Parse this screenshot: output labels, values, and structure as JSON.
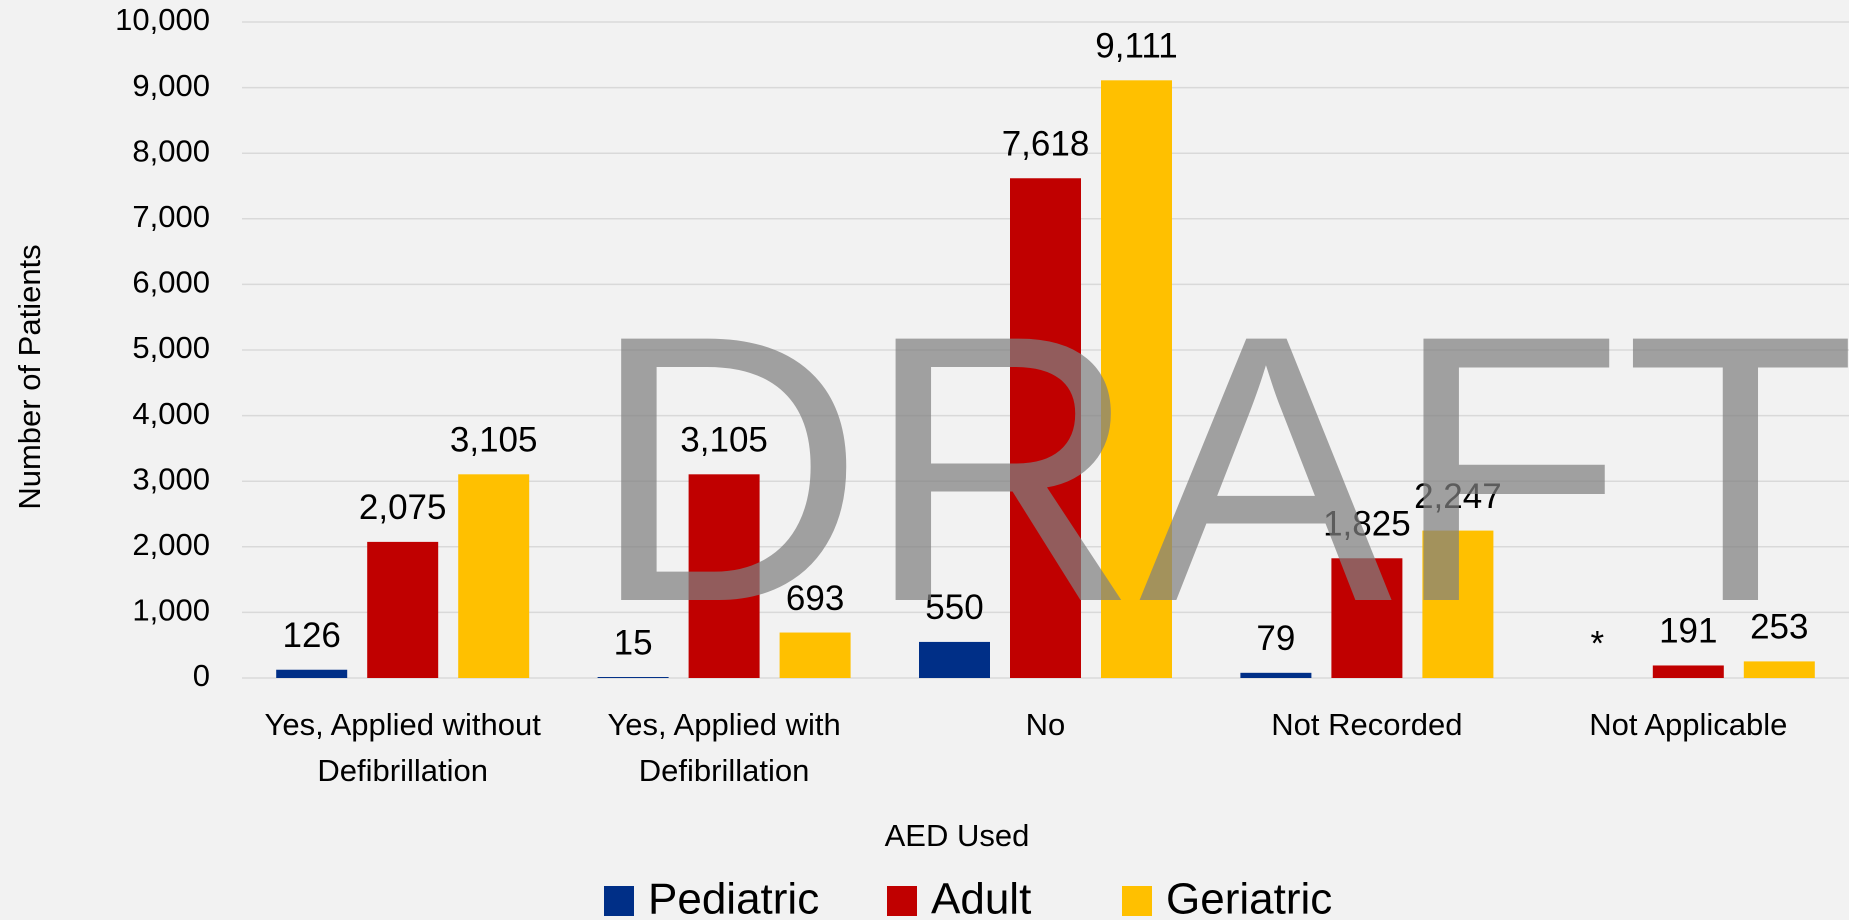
{
  "chart_data": {
    "type": "bar",
    "watermark": "DRAFT",
    "x_label": "AED Used",
    "y_label": "Number of Patients",
    "categories": [
      "Yes, Applied without Defibrillation",
      "Yes, Applied with Defibrillation",
      "No",
      "Not Recorded",
      "Not Applicable"
    ],
    "series": [
      {
        "name": "Pediatric",
        "color": "#002f87",
        "values": [
          126,
          15,
          550,
          79,
          null
        ],
        "value_labels": [
          "126",
          "15",
          "550",
          "79",
          "*"
        ]
      },
      {
        "name": "Adult",
        "color": "#c00000",
        "values": [
          2075,
          3105,
          7618,
          1825,
          191
        ],
        "value_labels": [
          "2,075",
          "3,105",
          "7,618",
          "1,825",
          "191"
        ]
      },
      {
        "name": "Geriatric",
        "color": "#ffc000",
        "values": [
          3105,
          693,
          9111,
          2247,
          253
        ],
        "value_labels": [
          "3,105",
          "693",
          "9,111",
          "2,247",
          "253"
        ]
      }
    ],
    "ylim": [
      0,
      10000
    ],
    "yticks": [
      0,
      {
        "value": 1000,
        "label": "1,000"
      },
      {
        "value": 2000,
        "label": "2,000"
      },
      {
        "value": 3000,
        "label": "3,000"
      },
      {
        "value": 4000,
        "label": "4,000"
      },
      {
        "value": 5000,
        "label": "5,000"
      },
      {
        "value": 6000,
        "label": "6,000"
      },
      {
        "value": 7000,
        "label": "7,000"
      },
      {
        "value": 8000,
        "label": "8,000"
      },
      {
        "value": 9000,
        "label": "9,000"
      },
      {
        "value": 10000,
        "label": "10,000"
      }
    ],
    "grid": true,
    "legend": "bottom"
  }
}
